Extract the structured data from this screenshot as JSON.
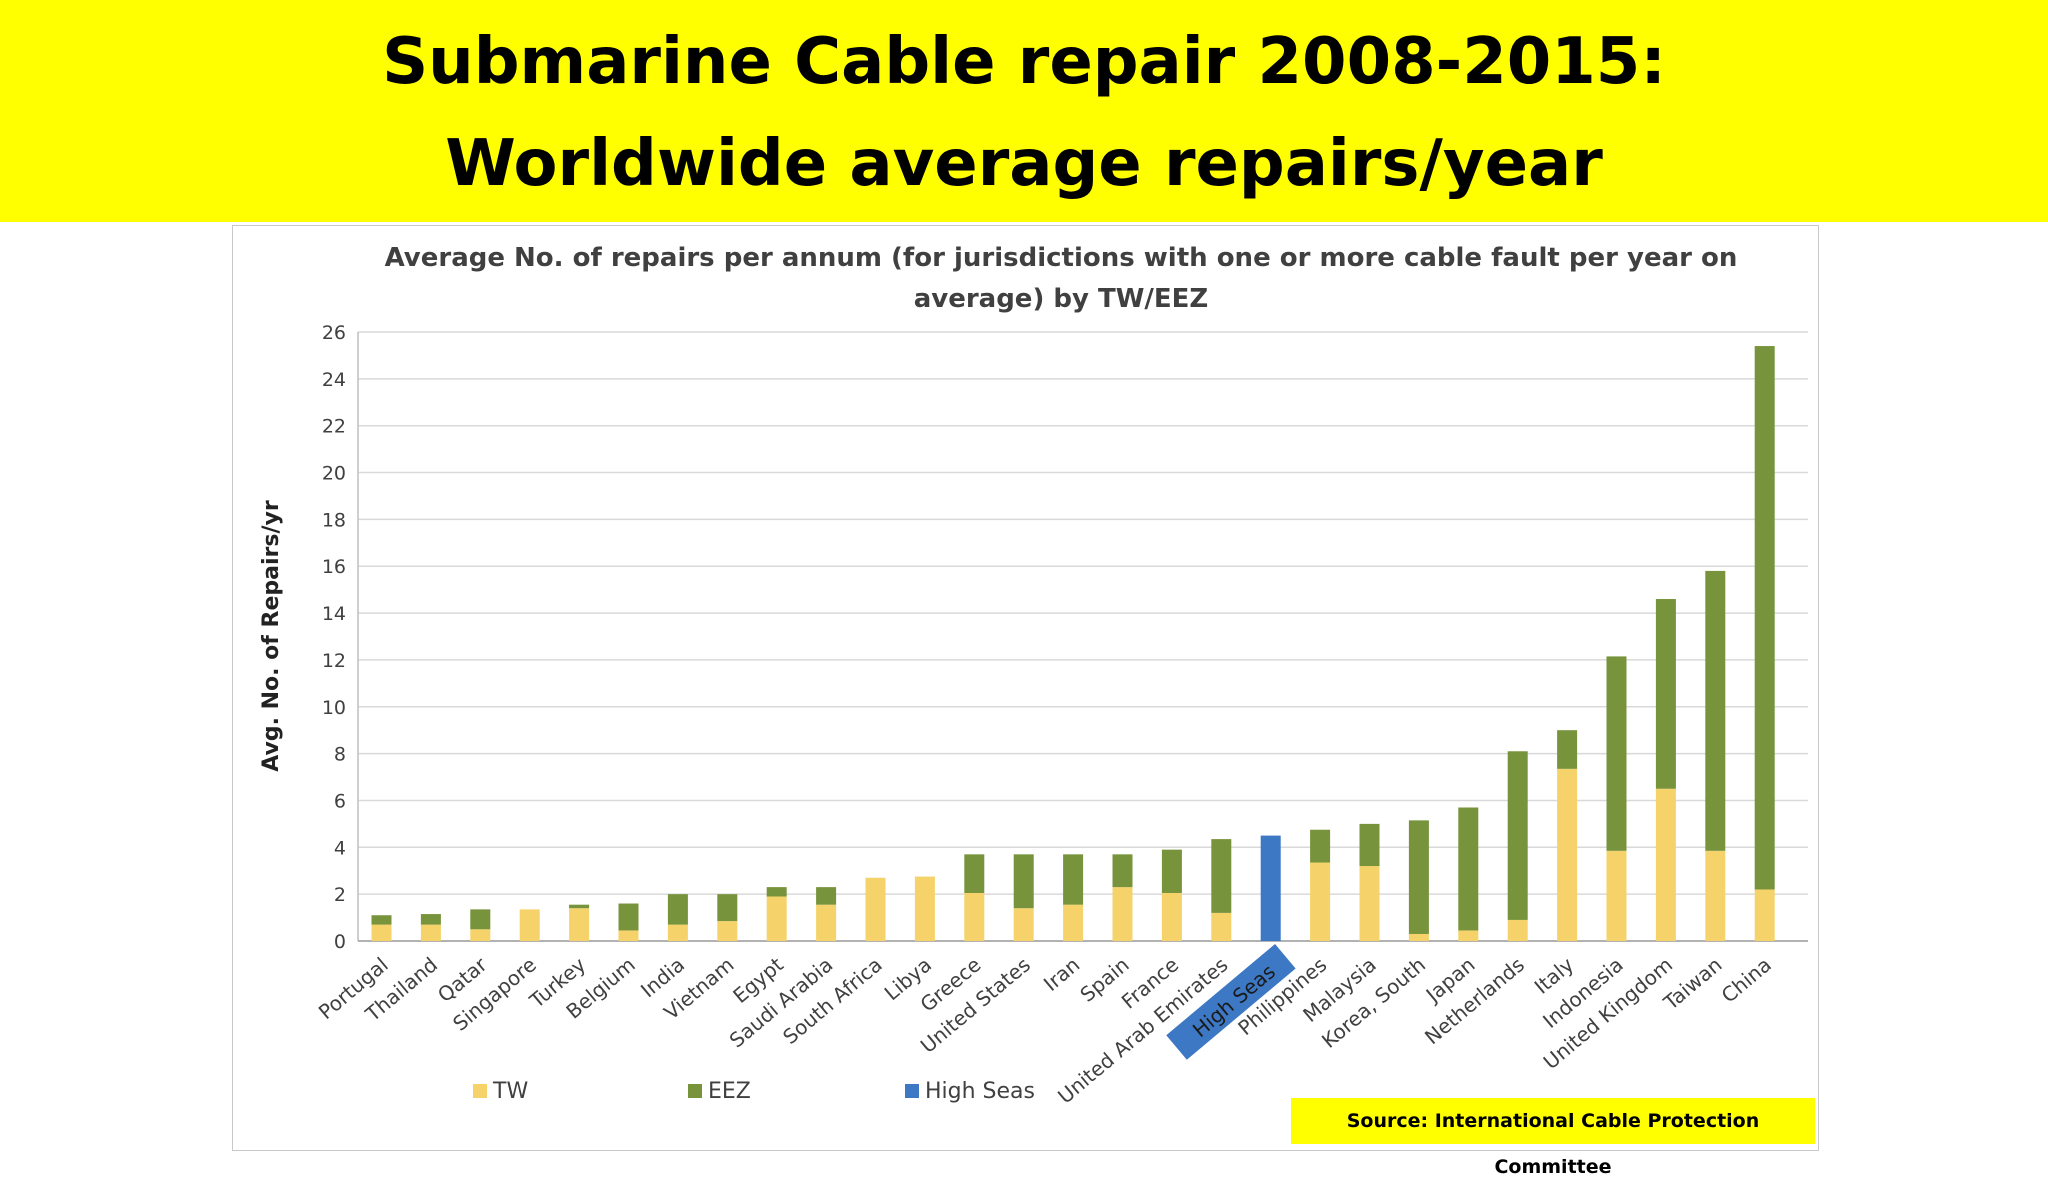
{
  "banner": {
    "title_line_1": "Submarine Cable repair 2008-2015:",
    "title_line_2": "Worldwide average repairs/year"
  },
  "source": "Source: International Cable Protection Committee",
  "colors": {
    "banner_bg": "#ffff00",
    "tw": "#f5d36a",
    "eez": "#77933c",
    "high_seas": "#3d78c4",
    "highlight_label": "#3d78c4"
  },
  "chart_data": {
    "type": "bar",
    "stacked": true,
    "title": "Average No. of repairs per annum (for  jurisdictions with one or more cable fault per year on average) by TW/EEZ",
    "ylabel": "Avg. No. of Repairs/yr",
    "xlabel": "",
    "ylim": [
      0,
      26
    ],
    "yticks": [
      0,
      2,
      4,
      6,
      8,
      10,
      12,
      14,
      16,
      18,
      20,
      22,
      24,
      26
    ],
    "grid": true,
    "legend_position": "bottom-left",
    "highlighted_category": "High Seas",
    "categories": [
      "Portugal",
      "Thailand",
      "Qatar",
      "Singapore",
      "Turkey",
      "Belgium",
      "India",
      "Vietnam",
      "Egypt",
      "Saudi Arabia",
      "South Africa",
      "Libya",
      "Greece",
      "United States",
      "Iran",
      "Spain",
      "France",
      "United Arab Emirates",
      "High Seas",
      "Philippines",
      "Malaysia",
      "Korea, South",
      "Japan",
      "Netherlands",
      "Italy",
      "Indonesia",
      "United Kingdom",
      "Taiwan",
      "China"
    ],
    "series": [
      {
        "name": "TW",
        "color": "#f5d36a",
        "values": [
          0.7,
          0.7,
          0.5,
          1.35,
          1.4,
          0.45,
          0.7,
          0.85,
          1.9,
          1.55,
          2.7,
          2.75,
          2.05,
          1.4,
          1.55,
          2.3,
          2.05,
          1.2,
          0,
          3.35,
          3.2,
          0.3,
          0.45,
          0.9,
          7.35,
          3.85,
          6.5,
          3.85,
          2.2
        ]
      },
      {
        "name": "EEZ",
        "color": "#77933c",
        "values": [
          0.4,
          0.45,
          0.85,
          0,
          0.15,
          1.15,
          1.3,
          1.15,
          0.4,
          0.75,
          0,
          0,
          1.65,
          2.3,
          2.15,
          1.4,
          1.85,
          3.15,
          0,
          1.4,
          1.8,
          4.85,
          5.25,
          7.2,
          1.65,
          8.3,
          8.1,
          11.95,
          23.2
        ]
      },
      {
        "name": "High Seas",
        "color": "#3d78c4",
        "values": [
          0,
          0,
          0,
          0,
          0,
          0,
          0,
          0,
          0,
          0,
          0,
          0,
          0,
          0,
          0,
          0,
          0,
          0,
          4.5,
          0,
          0,
          0,
          0,
          0,
          0,
          0,
          0,
          0,
          0
        ]
      }
    ]
  }
}
